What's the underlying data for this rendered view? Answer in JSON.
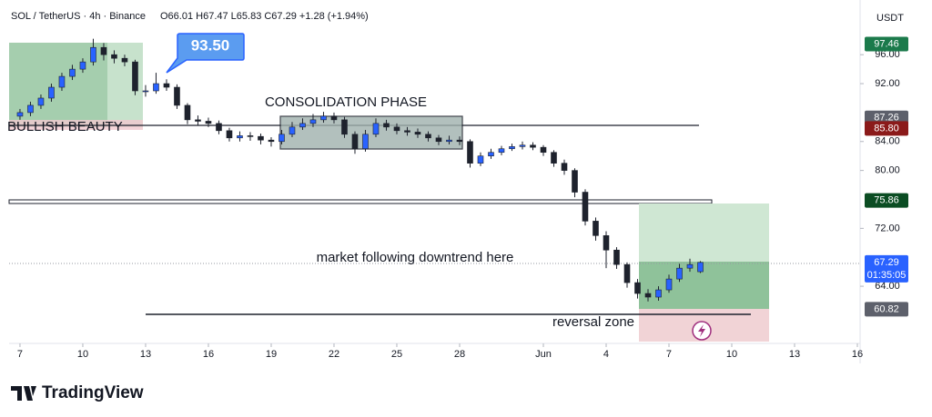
{
  "header": {
    "symbol": "SOL / TetherUS · 4h · Binance",
    "ohlc": "O66.01 H67.47 L65.83 C67.29 +1.28 (+1.94%)",
    "currency": "USDT"
  },
  "chart_data": {
    "type": "candlestick",
    "x": [
      0,
      0.5,
      1,
      1.5,
      2,
      2.5,
      3,
      3.5,
      4,
      4.5,
      5,
      5.5,
      6,
      6.5,
      7,
      7.5,
      8,
      8.5,
      9,
      9.5,
      10,
      10.5,
      11,
      11.5,
      12,
      12.5,
      13,
      13.5,
      14,
      14.5,
      15,
      15.5,
      16,
      16.5,
      17,
      17.5,
      18,
      18.5,
      19,
      19.5,
      20,
      20.5,
      21,
      21.5,
      22,
      22.5,
      23,
      23.5,
      24,
      24.5,
      25,
      25.5,
      26,
      26.5,
      27,
      27.5,
      28,
      28.5,
      29,
      29.5,
      30,
      30.5,
      31,
      31.5,
      32,
      32.5
    ],
    "open": [
      87.5,
      88,
      89,
      90,
      91.5,
      93,
      94,
      95,
      97,
      96,
      95.5,
      95,
      91,
      91,
      92,
      91.5,
      89,
      87,
      86.8,
      86.5,
      85.5,
      84.5,
      84.8,
      84.7,
      84.2,
      84,
      85,
      86,
      86.5,
      87,
      87.5,
      87,
      85,
      83,
      85,
      86.5,
      86,
      85.5,
      85.3,
      85,
      84.5,
      84,
      84.2,
      84,
      81,
      82,
      82.5,
      83,
      83.3,
      83.5,
      83.2,
      82.5,
      81,
      80,
      77,
      73,
      71,
      69,
      67,
      64.5,
      63,
      62.5,
      63.5,
      65,
      66.5,
      66.01
    ],
    "high": [
      88.5,
      89.5,
      90.5,
      92,
      93.5,
      94.6,
      95.5,
      98.2,
      97.6,
      96.6,
      96,
      95.3,
      91.8,
      93.5,
      92.6,
      91.9,
      89.3,
      87.6,
      87.3,
      86.9,
      85.9,
      85.4,
      85.3,
      85.1,
      84.6,
      85.6,
      86.7,
      87.2,
      87.8,
      88.1,
      88,
      87.4,
      85.4,
      85.6,
      87.2,
      87,
      86.5,
      86,
      85.8,
      85.4,
      84.9,
      84.8,
      84.7,
      84.3,
      82.5,
      83,
      83.4,
      83.7,
      84,
      83.9,
      83.5,
      82.8,
      81.5,
      80.3,
      77.4,
      73.5,
      71.6,
      69.4,
      67.3,
      65,
      63.6,
      64,
      65.6,
      67.1,
      67.8,
      67.47
    ],
    "low": [
      87,
      87.5,
      88.5,
      89.5,
      91,
      92.5,
      93.5,
      94.5,
      95.2,
      94.8,
      94.4,
      90.4,
      90.2,
      90.6,
      91,
      88.5,
      86.4,
      86.2,
      86,
      85,
      84,
      84,
      84.1,
      83.6,
      83.3,
      83.6,
      84.6,
      85.6,
      86,
      86.6,
      86.5,
      84.5,
      82.3,
      82.6,
      84.6,
      85.5,
      85,
      84.8,
      84.5,
      84,
      83.5,
      83.6,
      83.5,
      80.4,
      80.6,
      81.6,
      82.1,
      82.7,
      82.9,
      82.8,
      82,
      80.5,
      79.4,
      76.3,
      72.4,
      70.3,
      66.5,
      66.4,
      63.8,
      62.3,
      61.9,
      62,
      63.1,
      64.6,
      66,
      65.83
    ],
    "close": [
      88,
      89,
      90,
      91.5,
      93,
      94,
      95,
      97,
      96,
      95.5,
      95,
      91,
      91,
      92,
      91.5,
      89,
      87,
      86.8,
      86.5,
      85.5,
      84.5,
      84.8,
      84.7,
      84.2,
      84,
      85,
      86,
      86.5,
      87,
      87.5,
      87,
      85,
      83,
      85,
      86.5,
      86,
      85.5,
      85.3,
      85,
      84.5,
      84,
      84.2,
      84,
      81,
      82,
      82.5,
      83,
      83.3,
      83.5,
      83.2,
      82.5,
      81,
      80,
      77,
      73,
      71,
      69,
      67,
      64.5,
      63,
      62.5,
      63.5,
      65,
      66.5,
      67,
      67.29
    ],
    "up_color": "#2962ff",
    "down_color": "#1e222d",
    "xlim": [
      -0.52,
      40.13
    ],
    "ylim": [
      56.1,
      102.3
    ],
    "xticks": [
      {
        "value": 0,
        "label": "7"
      },
      {
        "value": 3,
        "label": "10"
      },
      {
        "value": 6,
        "label": "13"
      },
      {
        "value": 9,
        "label": "16"
      },
      {
        "value": 12,
        "label": "19"
      },
      {
        "value": 15,
        "label": "22"
      },
      {
        "value": 18,
        "label": "25"
      },
      {
        "value": 21,
        "label": "28"
      },
      {
        "value": 25,
        "label": "Jun"
      },
      {
        "value": 28,
        "label": "4"
      },
      {
        "value": 31,
        "label": "7"
      },
      {
        "value": 34,
        "label": "10"
      },
      {
        "value": 37,
        "label": "13"
      },
      {
        "value": 40,
        "label": "16"
      }
    ],
    "yticks": [
      {
        "value": 64,
        "label": "64.00"
      },
      {
        "value": 72,
        "label": "72.00"
      },
      {
        "value": 80,
        "label": "80.00"
      },
      {
        "value": 84,
        "label": "84.00"
      },
      {
        "value": 92,
        "label": "92.00"
      },
      {
        "value": 96,
        "label": "96.00"
      }
    ],
    "price_labels": [
      {
        "value": 97.46,
        "label": "97.46",
        "color": "#1b7a4b"
      },
      {
        "value": 87.26,
        "label": "87.26",
        "color": "#5d606b"
      },
      {
        "value": 85.8,
        "label": "85.80",
        "color": "#8b1a1a"
      },
      {
        "value": 75.86,
        "label": "75.86",
        "color": "#0b4d23"
      },
      {
        "value": 67.29,
        "label": "67.29",
        "color": "#2962ff"
      },
      {
        "value": 60.82,
        "label": "60.82",
        "color": "#5d606b"
      }
    ],
    "countdown": "01:35:05",
    "annotations": {
      "callout": "93.50",
      "bullish": "BULLISH BEAUTY",
      "consolidation": "CONSOLIDATION PHASE",
      "downtrend": "market following downtrend here",
      "reversal": "reversal zone"
    }
  },
  "footer": {
    "logo": "TradingView"
  }
}
